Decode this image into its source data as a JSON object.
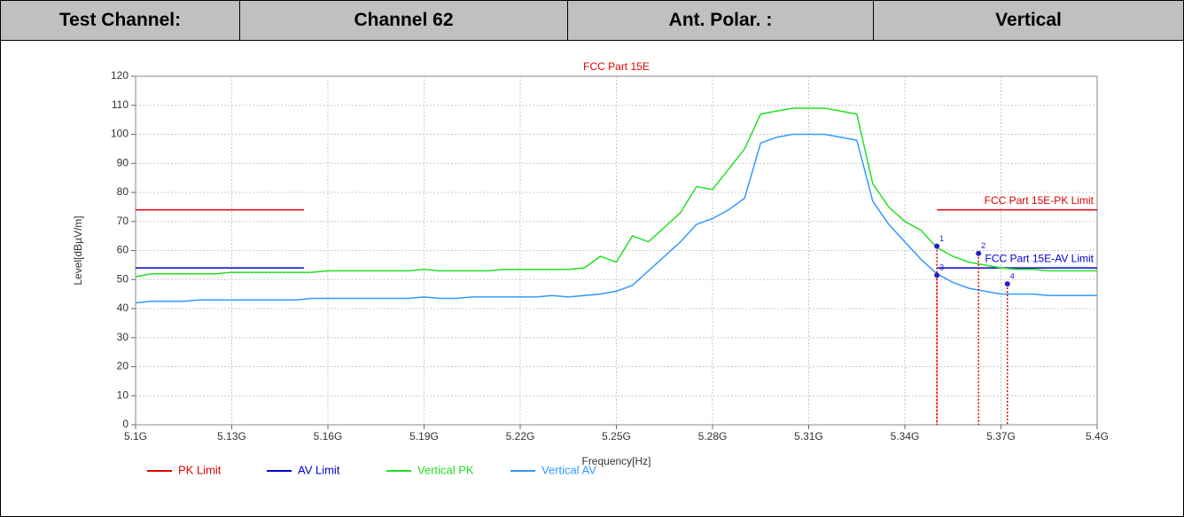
{
  "header": {
    "cells": [
      "Test Channel:",
      "Channel 62",
      "Ant. Polar. :",
      "Vertical"
    ]
  },
  "chart_data": {
    "type": "line",
    "title": "FCC Part 15E",
    "title_color": "#e00000",
    "xlabel": "Frequency[Hz]",
    "ylabel": "Level[dBµV/m]",
    "xlim": [
      5100000000,
      5400000000
    ],
    "xticks": [
      {
        "value": 5100000000,
        "label": "5.1G"
      },
      {
        "value": 5130000000,
        "label": "5.13G"
      },
      {
        "value": 5160000000,
        "label": "5.16G"
      },
      {
        "value": 5190000000,
        "label": "5.19G"
      },
      {
        "value": 5220000000,
        "label": "5.22G"
      },
      {
        "value": 5250000000,
        "label": "5.25G"
      },
      {
        "value": 5280000000,
        "label": "5.28G"
      },
      {
        "value": 5310000000,
        "label": "5.31G"
      },
      {
        "value": 5340000000,
        "label": "5.34G"
      },
      {
        "value": 5370000000,
        "label": "5.37G"
      },
      {
        "value": 5400000000,
        "label": "5.4G"
      }
    ],
    "ylim": [
      0,
      120
    ],
    "yticks": [
      0,
      10,
      20,
      30,
      40,
      50,
      60,
      70,
      80,
      90,
      100,
      110,
      120
    ],
    "grid": true,
    "series": [
      {
        "name": "PK Limit",
        "color": "#e00000",
        "x": [
          5100000000,
          5152500000,
          null,
          5350000000,
          5400000000
        ],
        "values": [
          74,
          74,
          null,
          74,
          74
        ]
      },
      {
        "name": "AV Limit",
        "color": "#0000cc",
        "x": [
          5100000000,
          5152500000,
          null,
          5350000000,
          5400000000
        ],
        "values": [
          54,
          54,
          null,
          54,
          54
        ]
      },
      {
        "name": "Vertical PK",
        "color": "#22e022",
        "x": [
          5100000000,
          5105000000,
          5110000000,
          5115000000,
          5120000000,
          5125000000,
          5130000000,
          5135000000,
          5140000000,
          5145000000,
          5150000000,
          5155000000,
          5160000000,
          5165000000,
          5170000000,
          5175000000,
          5180000000,
          5185000000,
          5190000000,
          5195000000,
          5200000000,
          5205000000,
          5210000000,
          5215000000,
          5220000000,
          5225000000,
          5230000000,
          5235000000,
          5240000000,
          5245000000,
          5250000000,
          5255000000,
          5260000000,
          5265000000,
          5270000000,
          5275000000,
          5280000000,
          5285000000,
          5290000000,
          5295000000,
          5300000000,
          5305000000,
          5310000000,
          5315000000,
          5320000000,
          5325000000,
          5330000000,
          5335000000,
          5340000000,
          5345000000,
          5350000000,
          5355000000,
          5360000000,
          5365000000,
          5370000000,
          5375000000,
          5380000000,
          5385000000,
          5390000000,
          5395000000,
          5400000000
        ],
        "values": [
          51,
          52,
          52,
          52,
          52,
          52,
          52.5,
          52.5,
          52.5,
          52.5,
          52.5,
          52.5,
          53,
          53,
          53,
          53,
          53,
          53,
          53.5,
          53,
          53,
          53,
          53,
          53.5,
          53.5,
          53.5,
          53.5,
          53.5,
          54,
          58,
          56,
          65,
          63,
          68,
          73,
          82,
          81,
          88,
          95,
          107,
          108,
          109,
          109,
          109,
          108,
          107,
          83,
          75,
          70,
          67,
          61,
          58,
          56,
          55,
          54,
          53.5,
          53.5,
          53,
          53,
          53,
          53
        ]
      },
      {
        "name": "Vertical AV",
        "color": "#3399ff",
        "x": [
          5100000000,
          5105000000,
          5110000000,
          5115000000,
          5120000000,
          5125000000,
          5130000000,
          5135000000,
          5140000000,
          5145000000,
          5150000000,
          5155000000,
          5160000000,
          5165000000,
          5170000000,
          5175000000,
          5180000000,
          5185000000,
          5190000000,
          5195000000,
          5200000000,
          5205000000,
          5210000000,
          5215000000,
          5220000000,
          5225000000,
          5230000000,
          5235000000,
          5240000000,
          5245000000,
          5250000000,
          5255000000,
          5260000000,
          5265000000,
          5270000000,
          5275000000,
          5280000000,
          5285000000,
          5290000000,
          5295000000,
          5300000000,
          5305000000,
          5310000000,
          5315000000,
          5320000000,
          5325000000,
          5330000000,
          5335000000,
          5340000000,
          5345000000,
          5350000000,
          5355000000,
          5360000000,
          5365000000,
          5370000000,
          5375000000,
          5380000000,
          5385000000,
          5390000000,
          5395000000,
          5400000000
        ],
        "values": [
          42,
          42.5,
          42.5,
          42.5,
          43,
          43,
          43,
          43,
          43,
          43,
          43,
          43.5,
          43.5,
          43.5,
          43.5,
          43.5,
          43.5,
          43.5,
          44,
          43.5,
          43.5,
          44,
          44,
          44,
          44,
          44,
          44.5,
          44,
          44.5,
          45,
          46,
          48,
          53,
          58,
          63,
          69,
          71,
          74,
          78,
          97,
          99,
          100,
          100,
          100,
          99,
          98,
          77,
          69,
          63,
          57,
          52,
          49,
          47,
          46,
          45,
          45,
          45,
          44.5,
          44.5,
          44.5,
          44.5
        ]
      }
    ],
    "markers": [
      {
        "label": "1",
        "x": 5350000000,
        "y": 61.5
      },
      {
        "label": "2",
        "x": 5363000000,
        "y": 59
      },
      {
        "label": "3",
        "x": 5350000000,
        "y": 51.5
      },
      {
        "label": "4",
        "x": 5372000000,
        "y": 48.5
      }
    ],
    "marker_color": "#2222cc",
    "marker_line_color": "#e00000",
    "annotations": [
      {
        "text": "FCC Part 15E-PK Limit",
        "color": "#e00000",
        "y": 74
      },
      {
        "text": "FCC Part 15E-AV Limit",
        "color": "#0000cc",
        "y": 54
      }
    ]
  }
}
